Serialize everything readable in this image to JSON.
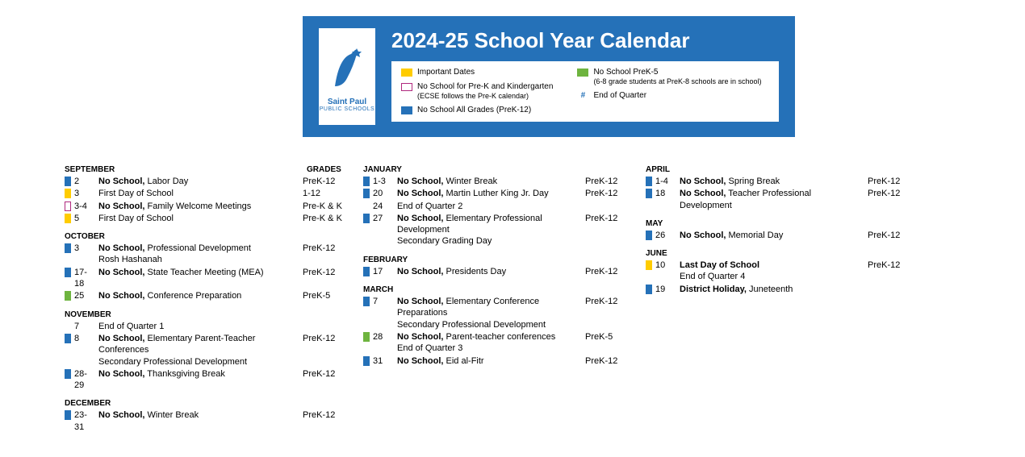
{
  "header": {
    "title": "2024-25 School Year Calendar",
    "logo_top": "Saint Paul",
    "logo_bottom": "PUBLIC SCHOOLS",
    "colors": {
      "header_bg": "#2571b8",
      "yellow": "#ffcc00",
      "blue": "#2571b8",
      "green": "#6eb43f",
      "outline": "#b0297e",
      "white": "#ffffff"
    }
  },
  "legend": {
    "col1": [
      {
        "swatch": "yellow",
        "text": "Important Dates"
      },
      {
        "swatch": "outline",
        "text": "No School for Pre-K and Kindergarten",
        "sub": "(ECSE follows the Pre-K calendar)"
      },
      {
        "swatch": "blue",
        "text": "No School All Grades (PreK-12)"
      }
    ],
    "col2": [
      {
        "swatch": "green",
        "text": "No School PreK-5",
        "sub": "(6-8 grade students at PreK-8 schools are in school)"
      },
      {
        "swatch": "hash",
        "text": "End of Quarter"
      }
    ]
  },
  "grades_label": "GRADES",
  "columns": [
    {
      "months": [
        {
          "name": "SEPTEMBER",
          "events": [
            {
              "swatch": "blue",
              "date": "2",
              "bold": "No School,",
              "rest": " Labor Day",
              "grade": "PreK-12"
            },
            {
              "swatch": "yellow",
              "date": "3",
              "bold": "",
              "rest": "First Day of School",
              "grade": "1-12"
            },
            {
              "swatch": "outline",
              "date": "3-4",
              "bold": "No School,",
              "rest": " Family Welcome Meetings",
              "grade": "Pre-K & K"
            },
            {
              "swatch": "yellow",
              "date": "5",
              "bold": "",
              "rest": "First Day of School",
              "grade": "Pre-K & K"
            }
          ]
        },
        {
          "name": "OCTOBER",
          "events": [
            {
              "swatch": "blue",
              "date": "3",
              "bold": "No School,",
              "rest": " Professional Development",
              "extra": "Rosh Hashanah",
              "grade": "PreK-12"
            },
            {
              "swatch": "blue",
              "date": "17-18",
              "bold": "No School,",
              "rest": " State Teacher Meeting (MEA)",
              "grade": "PreK-12"
            },
            {
              "swatch": "green",
              "date": "25",
              "bold": "No School,",
              "rest": " Conference Preparation",
              "grade": "PreK-5"
            }
          ]
        },
        {
          "name": "NOVEMBER",
          "events": [
            {
              "swatch": "none",
              "date": "7",
              "bold": "",
              "rest": "End of Quarter 1",
              "grade": ""
            },
            {
              "swatch": "blue",
              "date": "8",
              "bold": "No School,",
              "rest": " Elementary Parent-Teacher Conferences",
              "extra": "Secondary Professional Development",
              "grade": "PreK-12"
            },
            {
              "swatch": "blue",
              "date": "28-29",
              "bold": "No School,",
              "rest": " Thanksgiving Break",
              "grade": "PreK-12"
            }
          ]
        },
        {
          "name": "DECEMBER",
          "events": [
            {
              "swatch": "blue",
              "date": "23-31",
              "bold": "No School,",
              "rest": " Winter Break",
              "grade": "PreK-12"
            }
          ]
        }
      ]
    },
    {
      "months": [
        {
          "name": "JANUARY",
          "events": [
            {
              "swatch": "blue",
              "date": "1-3",
              "bold": "No School,",
              "rest": " Winter Break",
              "grade": "PreK-12"
            },
            {
              "swatch": "blue",
              "date": "20",
              "bold": "No School,",
              "rest": " Martin Luther King Jr. Day",
              "grade": "PreK-12"
            },
            {
              "swatch": "none",
              "date": "24",
              "bold": "",
              "rest": "End of Quarter 2",
              "grade": ""
            },
            {
              "swatch": "blue",
              "date": "27",
              "bold": "No School,",
              "rest": " Elementary Professional Development",
              "extra": "Secondary Grading Day",
              "grade": "PreK-12"
            }
          ]
        },
        {
          "name": "FEBRUARY",
          "events": [
            {
              "swatch": "blue",
              "date": "17",
              "bold": "No School,",
              "rest": " Presidents Day",
              "grade": "PreK-12"
            }
          ]
        },
        {
          "name": "MARCH",
          "events": [
            {
              "swatch": "blue",
              "date": "7",
              "bold": "No School,",
              "rest": " Elementary Conference Preparations",
              "extra": "Secondary Professional Development",
              "grade": "PreK-12"
            },
            {
              "swatch": "green",
              "date": "28",
              "bold": "No School,",
              "rest": " Parent-teacher conferences",
              "extra": "End of Quarter 3",
              "grade": "PreK-5"
            },
            {
              "swatch": "blue",
              "date": "31",
              "bold": "No School,",
              "rest": " Eid al-Fitr",
              "grade": "PreK-12"
            }
          ]
        }
      ]
    },
    {
      "months": [
        {
          "name": "APRIL",
          "events": [
            {
              "swatch": "blue",
              "date": "1-4",
              "bold": "No School,",
              "rest": " Spring Break",
              "grade": "PreK-12"
            },
            {
              "swatch": "blue",
              "date": "18",
              "bold": "No School,",
              "rest": " Teacher Professional Development",
              "grade": "PreK-12"
            }
          ]
        },
        {
          "name": "MAY",
          "events": [
            {
              "swatch": "blue",
              "date": "26",
              "bold": "No School,",
              "rest": " Memorial Day",
              "grade": "PreK-12"
            }
          ]
        },
        {
          "name": "JUNE",
          "events": [
            {
              "swatch": "yellow",
              "date": "10",
              "bold": "Last Day of School",
              "rest": "",
              "extra": "End of Quarter 4",
              "grade": "PreK-12"
            },
            {
              "swatch": "blue",
              "date": "19",
              "bold": "District Holiday,",
              "rest": " Juneteenth",
              "grade": ""
            }
          ]
        }
      ]
    }
  ]
}
